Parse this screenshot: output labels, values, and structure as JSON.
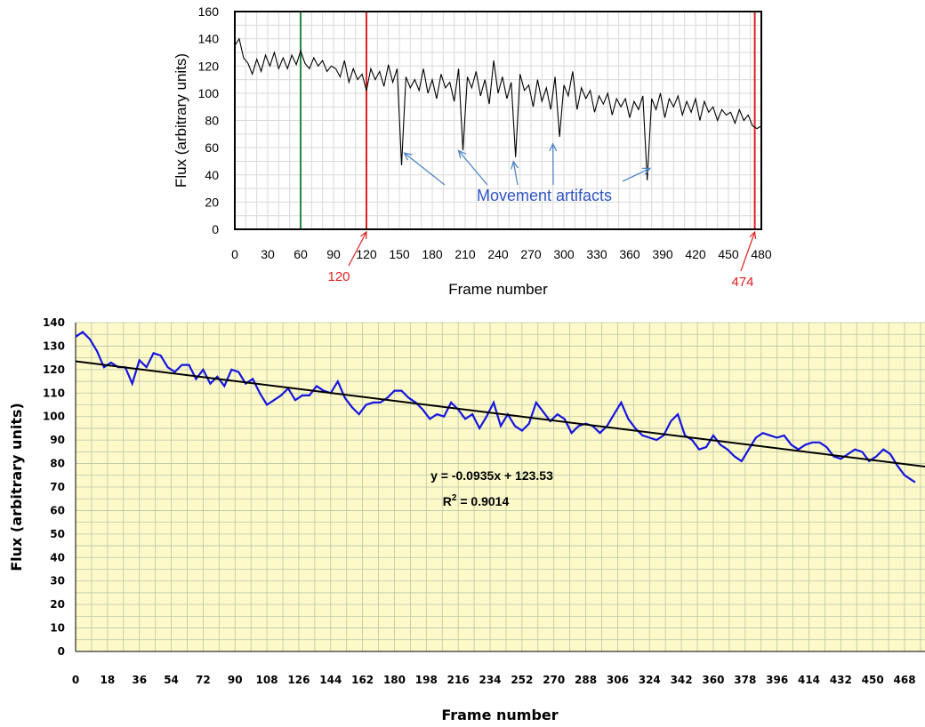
{
  "colors": {
    "top_line": "#000000",
    "green_marker": "#1e8c3c",
    "red_marker": "#e02020",
    "annotation": "#2f55c4",
    "arrow": "#4f86c6",
    "bottom_bg": "#fdf9c9",
    "bottom_grid": "#b9c7a6",
    "bottom_series": "#1515e0",
    "trend": "#000000"
  },
  "chart_data": [
    {
      "type": "line",
      "ylabel": "Flux (arbitrary units)",
      "xlabel": "Frame number",
      "xlim": [
        0,
        480
      ],
      "ylim": [
        0,
        160
      ],
      "xticks": [
        0,
        30,
        60,
        90,
        120,
        150,
        180,
        210,
        240,
        270,
        300,
        330,
        360,
        390,
        420,
        450,
        480
      ],
      "yticks": [
        0,
        20,
        40,
        60,
        80,
        100,
        120,
        140,
        160
      ],
      "grid": true,
      "markers": [
        {
          "x": 60,
          "color": "green"
        },
        {
          "x": 120,
          "color": "red",
          "label": "120"
        },
        {
          "x": 474,
          "color": "red",
          "label": "474"
        }
      ],
      "annotation": {
        "text": "Movement artifacts",
        "targets": [
          {
            "x": 148,
            "y": 60
          },
          {
            "x": 204,
            "y": 63
          },
          {
            "x": 254,
            "y": 55
          },
          {
            "x": 290,
            "y": 68
          },
          {
            "x": 385,
            "y": 50
          }
        ]
      },
      "series": [
        {
          "x": [
            0,
            4,
            8,
            12,
            16,
            20,
            24,
            28,
            32,
            36,
            40,
            44,
            48,
            52,
            56,
            60,
            64,
            68,
            72,
            76,
            80,
            84,
            88,
            92,
            96,
            100,
            104,
            108,
            112,
            116,
            120,
            124,
            128,
            132,
            136,
            140,
            144,
            148,
            152,
            156,
            160,
            164,
            168,
            172,
            176,
            180,
            184,
            188,
            192,
            196,
            200,
            204,
            208,
            212,
            216,
            220,
            224,
            228,
            232,
            236,
            240,
            244,
            248,
            252,
            256,
            260,
            264,
            268,
            272,
            276,
            280,
            284,
            288,
            292,
            296,
            300,
            304,
            308,
            312,
            316,
            320,
            324,
            328,
            332,
            336,
            340,
            344,
            348,
            352,
            356,
            360,
            364,
            368,
            372,
            376,
            380,
            384,
            388,
            392,
            396,
            400,
            404,
            408,
            412,
            416,
            420,
            424,
            428,
            432,
            436,
            440,
            444,
            448,
            452,
            456,
            460,
            464,
            468,
            472,
            476,
            480
          ],
          "y": [
            135,
            140,
            126,
            122,
            114,
            125,
            116,
            128,
            120,
            130,
            118,
            126,
            118,
            128,
            121,
            131,
            122,
            118,
            126,
            120,
            124,
            116,
            120,
            118,
            112,
            124,
            108,
            118,
            110,
            114,
            102,
            118,
            110,
            116,
            105,
            121,
            108,
            118,
            47,
            112,
            104,
            110,
            102,
            118,
            100,
            110,
            96,
            114,
            104,
            108,
            94,
            118,
            58,
            112,
            104,
            116,
            98,
            110,
            92,
            124,
            100,
            112,
            96,
            108,
            53,
            114,
            102,
            106,
            90,
            110,
            94,
            104,
            88,
            112,
            68,
            106,
            98,
            116,
            88,
            104,
            96,
            102,
            86,
            98,
            92,
            100,
            84,
            96,
            90,
            96,
            82,
            94,
            88,
            98,
            36,
            96,
            88,
            100,
            82,
            96,
            90,
            98,
            84,
            94,
            86,
            96,
            80,
            94,
            86,
            90,
            80,
            88,
            84,
            86,
            78,
            88,
            80,
            84,
            76,
            74,
            76
          ]
        }
      ]
    },
    {
      "type": "line",
      "ylabel": "Flux  (arbitrary units)",
      "xlabel": "Frame number",
      "xlim": [
        0,
        474
      ],
      "ylim": [
        0,
        140
      ],
      "xticks": [
        0,
        18,
        36,
        54,
        72,
        90,
        108,
        126,
        144,
        162,
        180,
        198,
        216,
        234,
        252,
        270,
        288,
        306,
        324,
        342,
        360,
        378,
        396,
        414,
        432,
        450,
        468
      ],
      "yticks": [
        0,
        10,
        20,
        30,
        40,
        50,
        60,
        70,
        80,
        90,
        100,
        110,
        120,
        130,
        140
      ],
      "grid": true,
      "trendline": {
        "slope": -0.0935,
        "intercept": 123.53,
        "equation": "y = -0.0935x + 123.53",
        "r2_prefix": "R",
        "r2_sup": "2",
        "r2_suffix": " = 0.9014"
      },
      "series": [
        {
          "x": [
            0,
            4,
            8,
            12,
            16,
            20,
            24,
            28,
            32,
            36,
            40,
            44,
            48,
            52,
            56,
            60,
            64,
            68,
            72,
            76,
            80,
            84,
            88,
            92,
            96,
            100,
            104,
            108,
            112,
            116,
            120,
            124,
            128,
            132,
            136,
            140,
            144,
            148,
            152,
            156,
            160,
            164,
            168,
            172,
            176,
            180,
            184,
            188,
            192,
            196,
            200,
            204,
            208,
            212,
            216,
            220,
            224,
            228,
            232,
            236,
            240,
            244,
            248,
            252,
            256,
            260,
            264,
            268,
            272,
            276,
            280,
            284,
            288,
            292,
            296,
            300,
            304,
            308,
            312,
            316,
            320,
            324,
            328,
            332,
            336,
            340,
            344,
            348,
            352,
            356,
            360,
            364,
            368,
            372,
            376,
            380,
            384,
            388,
            392,
            396,
            400,
            404,
            408,
            412,
            416,
            420,
            424,
            428,
            432,
            436,
            440,
            444,
            448,
            452,
            456,
            460,
            464,
            468,
            472,
            474
          ],
          "y": [
            134,
            136,
            133,
            128,
            121,
            123,
            121,
            121,
            114,
            124,
            121,
            127,
            126,
            121,
            119,
            122,
            122,
            116,
            120,
            114,
            117,
            113,
            120,
            119,
            114,
            116,
            110,
            105,
            107,
            109,
            112,
            107,
            109,
            109,
            113,
            111,
            110,
            115,
            108,
            104,
            101,
            105,
            106,
            106,
            108,
            111,
            111,
            108,
            106,
            103,
            99,
            101,
            100,
            106,
            103,
            99,
            101,
            95,
            100,
            106,
            96,
            101,
            96,
            94,
            97,
            106,
            102,
            98,
            101,
            99,
            93,
            96,
            97,
            96,
            93,
            96,
            101,
            106,
            99,
            95,
            92,
            91,
            90,
            92,
            98,
            101,
            92,
            90,
            86,
            87,
            92,
            88,
            86,
            83,
            81,
            86,
            91,
            93,
            92,
            91,
            92,
            88,
            86,
            88,
            89,
            89,
            87,
            83,
            82,
            84,
            86,
            85,
            81,
            83,
            86,
            84,
            79,
            75,
            73,
            72
          ]
        }
      ]
    }
  ],
  "labels": {
    "movement": "Movement artifacts",
    "marker_120": "120",
    "marker_474": "474"
  }
}
